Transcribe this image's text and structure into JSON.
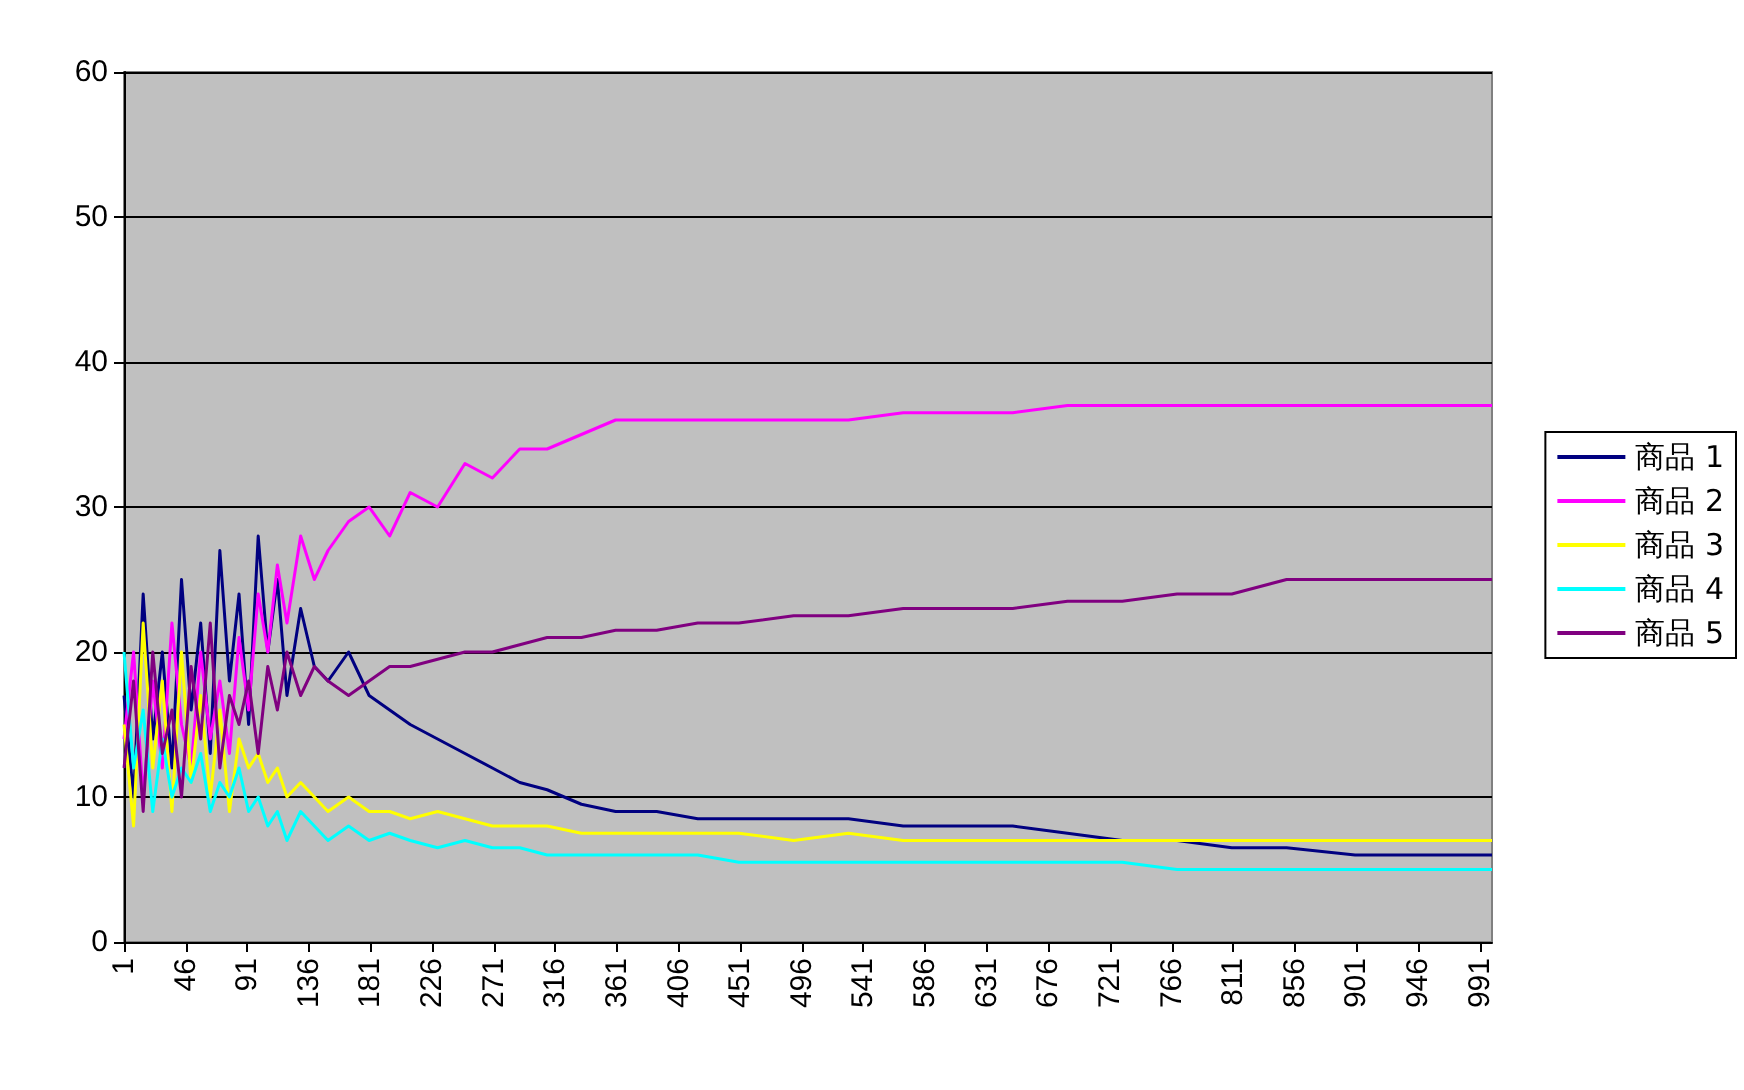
{
  "chart_data": {
    "type": "line",
    "x": [
      1,
      8,
      15,
      22,
      29,
      36,
      43,
      50,
      57,
      64,
      71,
      78,
      85,
      92,
      99,
      106,
      113,
      120,
      130,
      140,
      150,
      165,
      180,
      195,
      210,
      230,
      250,
      270,
      290,
      310,
      335,
      360,
      390,
      420,
      450,
      490,
      530,
      570,
      610,
      650,
      690,
      730,
      770,
      810,
      850,
      900,
      950,
      1000
    ],
    "series": [
      {
        "name": "商品 1",
        "color": "#000080",
        "values": [
          17,
          10,
          24,
          14,
          20,
          12,
          25,
          16,
          22,
          13,
          27,
          18,
          24,
          15,
          28,
          20,
          25,
          17,
          23,
          19,
          18,
          20,
          17,
          16,
          15,
          14,
          13,
          12,
          11,
          10.5,
          9.5,
          9,
          9,
          8.5,
          8.5,
          8.5,
          8.5,
          8,
          8,
          8,
          7.5,
          7,
          7,
          6.5,
          6.5,
          6,
          6,
          6
        ]
      },
      {
        "name": "商品 2",
        "color": "#ff00ff",
        "values": [
          14,
          20,
          10,
          18,
          12,
          22,
          15,
          12,
          20,
          14,
          18,
          13,
          21,
          16,
          24,
          20,
          26,
          22,
          28,
          25,
          27,
          29,
          30,
          28,
          31,
          30,
          33,
          32,
          34,
          34,
          35,
          36,
          36,
          36,
          36,
          36,
          36,
          36.5,
          36.5,
          36.5,
          37,
          37,
          37,
          37,
          37,
          37,
          37,
          37
        ]
      },
      {
        "name": "商品 3",
        "color": "#ffff00",
        "values": [
          15,
          8,
          22,
          12,
          18,
          9,
          20,
          11,
          17,
          10,
          16,
          9,
          14,
          12,
          13,
          11,
          12,
          10,
          11,
          10,
          9,
          10,
          9,
          9,
          8.5,
          9,
          8.5,
          8,
          8,
          8,
          7.5,
          7.5,
          7.5,
          7.5,
          7.5,
          7,
          7.5,
          7,
          7,
          7,
          7,
          7,
          7,
          7,
          7,
          7,
          7,
          7
        ]
      },
      {
        "name": "商品 4",
        "color": "#00ffff",
        "values": [
          20,
          12,
          16,
          9,
          14,
          10,
          12,
          11,
          13,
          9,
          11,
          10,
          12,
          9,
          10,
          8,
          9,
          7,
          9,
          8,
          7,
          8,
          7,
          7.5,
          7,
          6.5,
          7,
          6.5,
          6.5,
          6,
          6,
          6,
          6,
          6,
          5.5,
          5.5,
          5.5,
          5.5,
          5.5,
          5.5,
          5.5,
          5.5,
          5,
          5,
          5,
          5,
          5,
          5
        ]
      },
      {
        "name": "商品 5",
        "color": "#800080",
        "values": [
          12,
          18,
          9,
          20,
          13,
          16,
          10,
          19,
          14,
          22,
          12,
          17,
          15,
          18,
          13,
          19,
          16,
          20,
          17,
          19,
          18,
          17,
          18,
          19,
          19,
          19.5,
          20,
          20,
          20.5,
          21,
          21,
          21.5,
          21.5,
          22,
          22,
          22.5,
          22.5,
          23,
          23,
          23,
          23.5,
          23.5,
          24,
          24,
          25,
          25,
          25,
          25
        ]
      }
    ],
    "xlim": [
      1,
      1000
    ],
    "xticks": [
      1,
      46,
      91,
      136,
      181,
      226,
      271,
      316,
      361,
      406,
      451,
      496,
      541,
      586,
      631,
      676,
      721,
      766,
      811,
      856,
      901,
      946,
      991
    ],
    "ylim": [
      0,
      60
    ],
    "yticks": [
      0,
      10,
      20,
      30,
      40,
      50,
      60
    ],
    "grid": "y",
    "legend": "right"
  }
}
